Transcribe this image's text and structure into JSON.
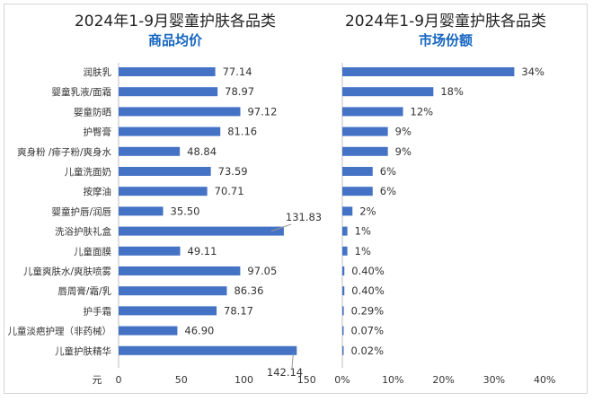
{
  "colors": {
    "bar": "#4472c4",
    "title_accent": "#1565c0",
    "axis": "#bfbfbf"
  },
  "chart_data": [
    {
      "type": "bar",
      "orientation": "horizontal",
      "title": "2024年1-9月婴童护肤各品类",
      "subtitle": "商品均价",
      "xunit": "元",
      "xlim": [
        0,
        150
      ],
      "xticks": [
        "0",
        "50",
        "100",
        "150"
      ],
      "categories": [
        "润肤乳",
        "婴童乳液/面霜",
        "婴童防晒",
        "护臀膏",
        "爽身粉 /痱子粉/爽身水",
        "儿童洗面奶",
        "按摩油",
        "婴童护唇/润唇",
        "洗浴护肤礼盒",
        "儿童面膜",
        "儿童爽肤水/爽肤喷雾",
        "唇周膏/霜/乳",
        "护手霜",
        "儿童淡疤护理（非药械）",
        "儿童护肤精华"
      ],
      "values": [
        77.14,
        78.97,
        97.12,
        81.16,
        48.84,
        73.59,
        70.71,
        35.5,
        131.83,
        49.11,
        97.05,
        86.36,
        78.17,
        46.9,
        142.14
      ],
      "value_labels": [
        "77.14",
        "78.97",
        "97.12",
        "81.16",
        "48.84",
        "73.59",
        "70.71",
        "35.50",
        "131.83",
        "49.11",
        "97.05",
        "86.36",
        "78.17",
        "46.90",
        "142.14"
      ],
      "grid": false
    },
    {
      "type": "bar",
      "orientation": "horizontal",
      "title": "2024年1-9月婴童护肤各品类",
      "subtitle": "市场份额",
      "xlim": [
        0,
        40
      ],
      "xticks": [
        "0%",
        "10%",
        "20%",
        "30%",
        "40%"
      ],
      "values": [
        34,
        18,
        12,
        9,
        9,
        6,
        6,
        2,
        1,
        1,
        0.4,
        0.4,
        0.29,
        0.07,
        0.02
      ],
      "value_labels": [
        "34%",
        "18%",
        "12%",
        "9%",
        "9%",
        "6%",
        "6%",
        "2%",
        "1%",
        "1%",
        "0.40%",
        "0.40%",
        "0.29%",
        "0.07%",
        "0.02%"
      ],
      "grid": false
    }
  ]
}
